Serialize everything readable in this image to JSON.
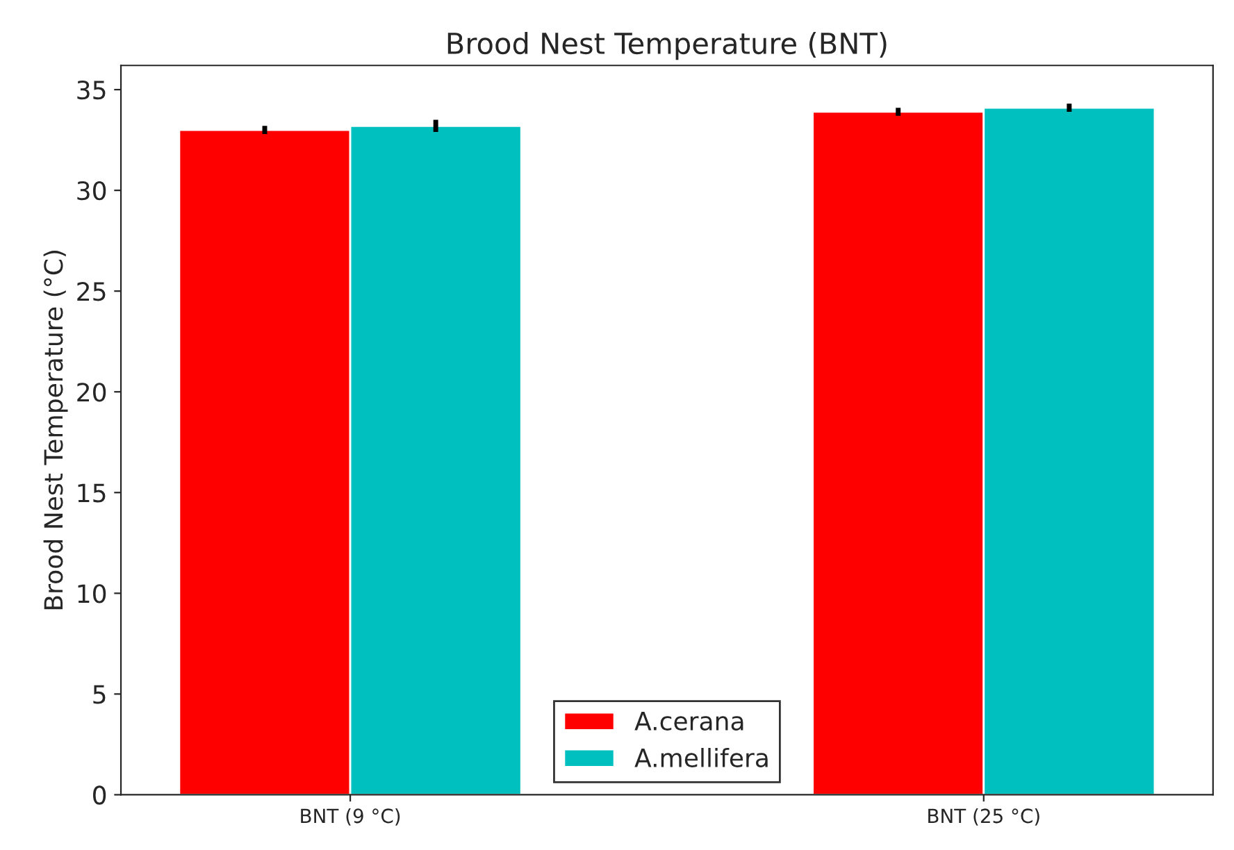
{
  "chart_data": {
    "type": "bar",
    "title": "Brood Nest Temperature (BNT)",
    "ylabel": "Brood Nest Temperature (°C)",
    "categories": [
      "BNT (9 °C)",
      "BNT (25 °C)"
    ],
    "series": [
      {
        "name": "A.cerana",
        "color": "#ff0000",
        "values": [
          33.0,
          33.9
        ],
        "errors": [
          0.2,
          0.2
        ]
      },
      {
        "name": "A.mellifera",
        "color": "#00bfbf",
        "values": [
          33.2,
          34.1
        ],
        "errors": [
          0.3,
          0.2
        ]
      }
    ],
    "ylim": [
      0,
      36.2
    ],
    "yticks": [
      0,
      5,
      10,
      15,
      20,
      25,
      30,
      35
    ],
    "grid": false,
    "legend": "bottom"
  }
}
